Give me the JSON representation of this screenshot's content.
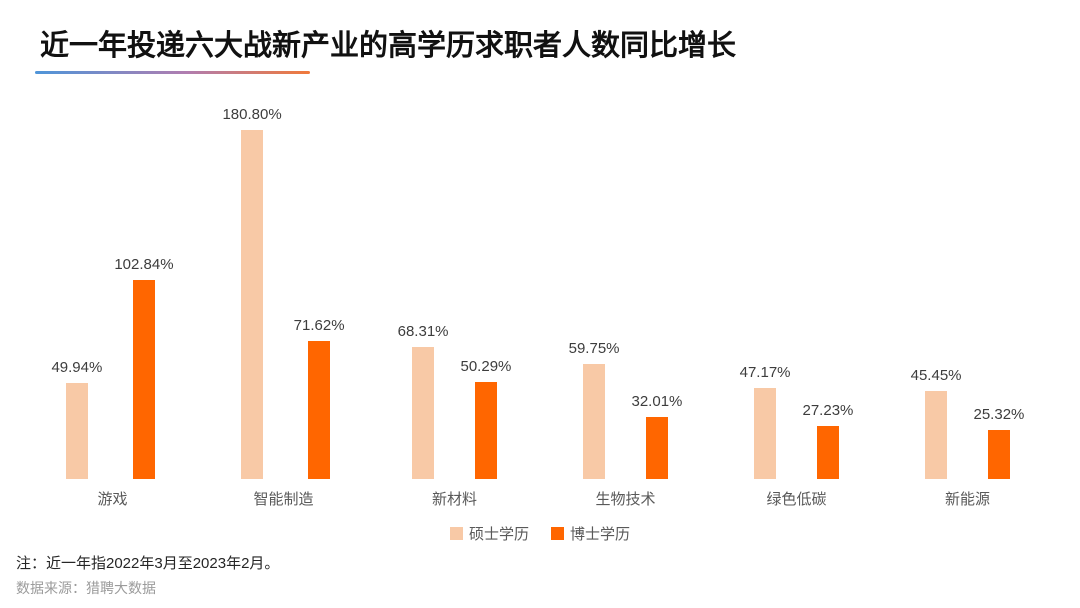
{
  "title": "近一年投递六大战新产业的高学历求职者人数同比增长",
  "note": "注：近一年指2022年3月至2023年2月。",
  "source": "数据来源：猎聘大数据",
  "colors": {
    "master_bar": "#F8C9A6",
    "doctor_bar": "#FF6600",
    "underline_start": "#4E95D9",
    "underline_end": "#F0793A"
  },
  "legend": [
    {
      "label": "硕士学历",
      "color": "#F8C9A6"
    },
    {
      "label": "博士学历",
      "color": "#FF6600"
    }
  ],
  "chart_data": {
    "type": "bar",
    "title": "近一年投递六大战新产业的高学历求职者人数同比增长",
    "categories": [
      "游戏",
      "智能制造",
      "新材料",
      "生物技术",
      "绿色低碳",
      "新能源"
    ],
    "series": [
      {
        "name": "硕士学历",
        "color": "#F8C9A6",
        "values": [
          49.94,
          180.8,
          68.31,
          59.75,
          47.17,
          45.45
        ]
      },
      {
        "name": "博士学历",
        "color": "#FF6600",
        "values": [
          102.84,
          71.62,
          50.29,
          32.01,
          27.23,
          25.32
        ]
      }
    ],
    "value_suffix": "%",
    "data_labels": true,
    "xlabel": "",
    "ylabel": "",
    "ylim": [
      0,
      196
    ],
    "grid": false,
    "legend_position": "bottom"
  }
}
